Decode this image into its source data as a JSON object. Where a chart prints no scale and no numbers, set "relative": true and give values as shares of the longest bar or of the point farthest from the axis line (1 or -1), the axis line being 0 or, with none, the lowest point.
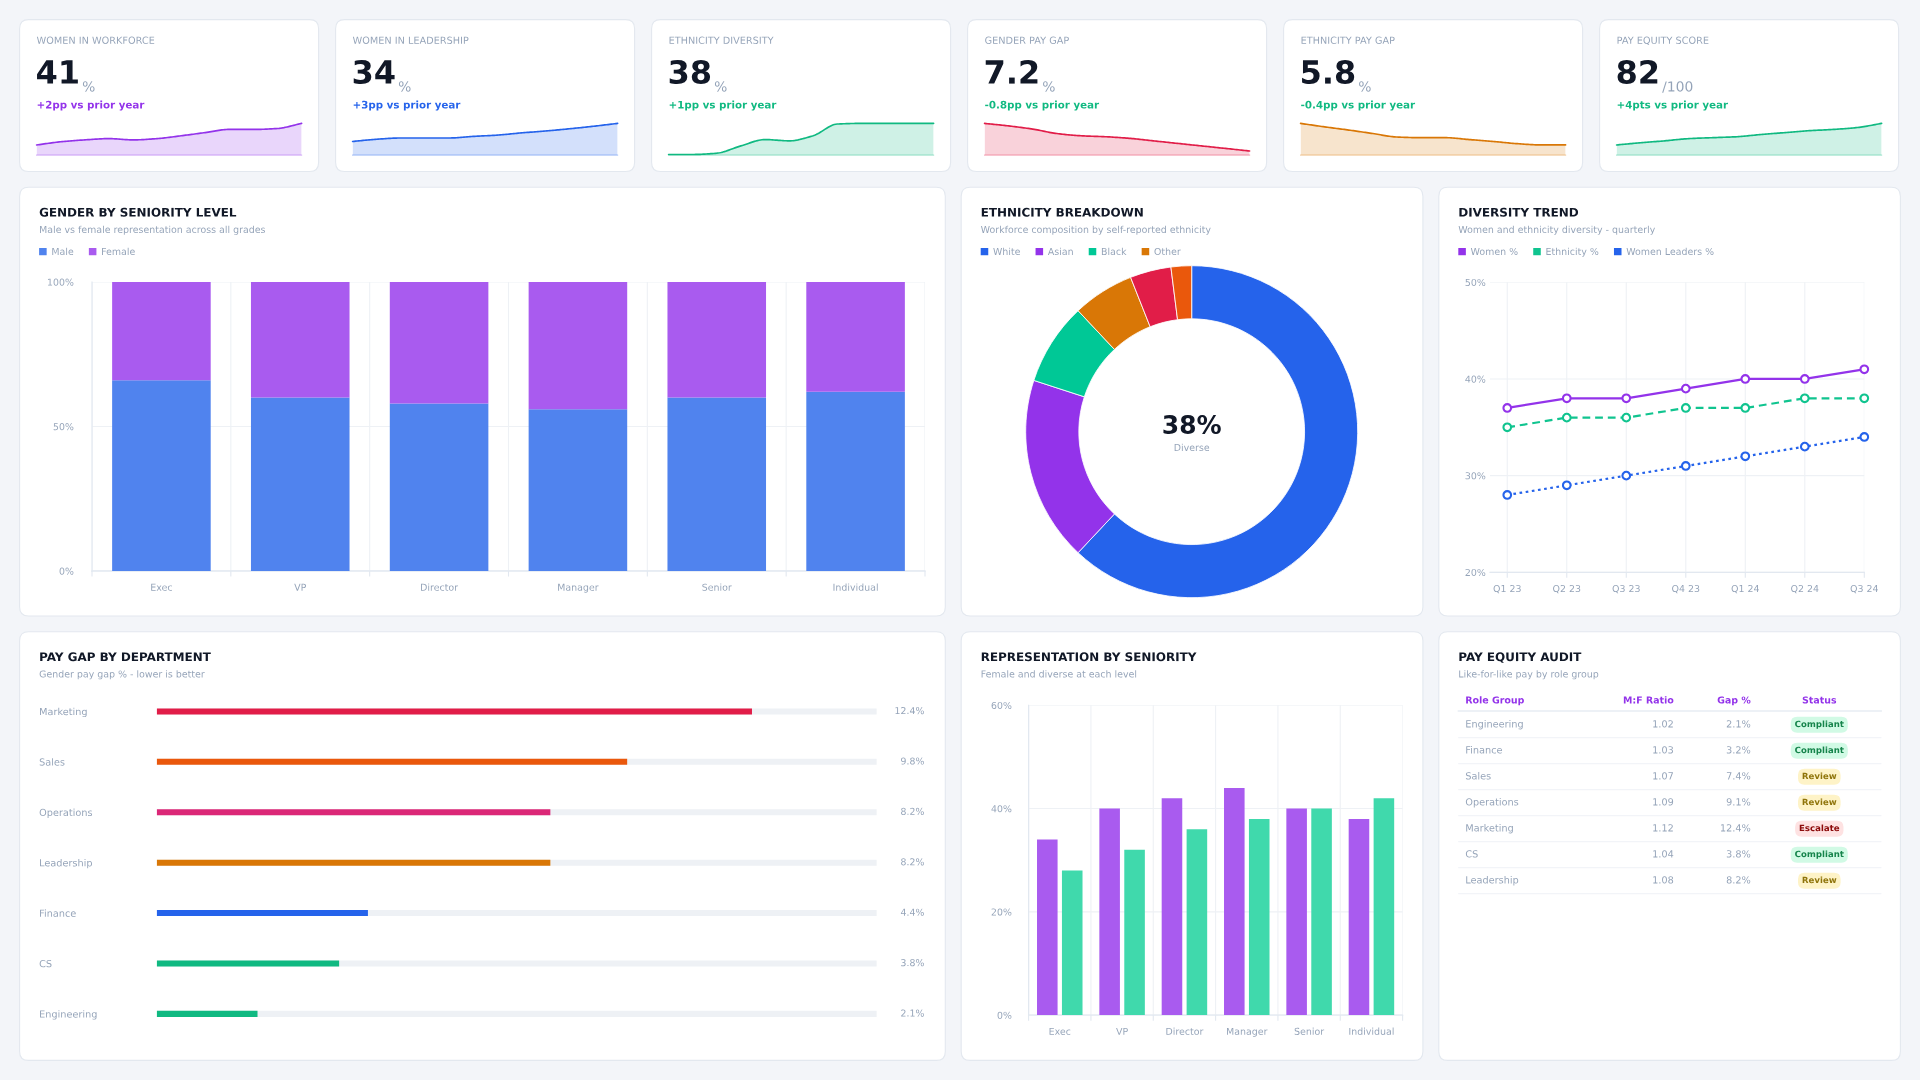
{
  "chart_data": [
    {
      "type": "area",
      "relative": true,
      "title": "WOMEN IN WORKFORCE",
      "categories": [
        null,
        null,
        null,
        null,
        null,
        null,
        null,
        null,
        null,
        null,
        null,
        null
      ],
      "series": [
        {
          "color": "#9333ea",
          "values": [
            0.32,
            0.42,
            0.48,
            0.52,
            0.48,
            0.52,
            0.61,
            0.71,
            0.81,
            0.81,
            0.84,
            1
          ]
        }
      ],
      "annotations": [
        "41",
        "%",
        "+2pp vs prior year"
      ],
      "colors": [
        "#111827",
        "#94a3b8",
        "#9333ea"
      ]
    },
    {
      "type": "area",
      "relative": true,
      "title": "WOMEN IN LEADERSHIP",
      "categories": [
        null,
        null,
        null,
        null,
        null,
        null,
        null,
        null,
        null,
        null,
        null,
        null
      ],
      "series": [
        {
          "color": "#2563eb",
          "values": [
            0.43,
            0.5,
            0.54,
            0.54,
            0.54,
            0.59,
            0.63,
            0.7,
            0.76,
            0.83,
            0.91,
            1
          ]
        }
      ],
      "annotations": [
        "34",
        "%",
        "+3pp vs prior year"
      ],
      "colors": [
        "#111827",
        "#94a3b8",
        "#2563eb"
      ]
    },
    {
      "type": "area",
      "relative": true,
      "title": "ETHNICITY DIVERSITY",
      "categories": [
        null,
        null,
        null,
        null,
        null,
        null,
        null,
        null,
        null,
        null,
        null,
        null
      ],
      "series": [
        {
          "color": "#10b981",
          "values": [
            0.02,
            0.02,
            0.06,
            0.29,
            0.49,
            0.45,
            0.61,
            0.98,
            1,
            1,
            1,
            1
          ]
        }
      ],
      "annotations": [
        "38",
        "%",
        "+1pp vs prior year"
      ],
      "colors": [
        "#111827",
        "#94a3b8",
        "#10b981"
      ]
    },
    {
      "type": "area",
      "relative": true,
      "title": "GENDER PAY GAP",
      "categories": [
        null,
        null,
        null,
        null,
        null,
        null,
        null,
        null,
        null,
        null,
        null,
        null
      ],
      "series": [
        {
          "color": "#e11d48",
          "values": [
            1,
            0.92,
            0.82,
            0.68,
            0.61,
            0.58,
            0.53,
            0.45,
            0.37,
            0.29,
            0.21,
            0.13
          ]
        }
      ],
      "annotations": [
        "7.2",
        "%",
        "-0.8pp vs prior year"
      ],
      "colors": [
        "#111827",
        "#94a3b8",
        "#10b981"
      ]
    },
    {
      "type": "area",
      "relative": true,
      "title": "ETHNICITY PAY GAP",
      "categories": [
        null,
        null,
        null,
        null,
        null,
        null,
        null,
        null,
        null,
        null,
        null,
        null
      ],
      "series": [
        {
          "color": "#d97706",
          "values": [
            1,
            0.89,
            0.79,
            0.68,
            0.57,
            0.55,
            0.55,
            0.49,
            0.43,
            0.36,
            0.32,
            0.32
          ]
        }
      ],
      "annotations": [
        "5.8",
        "%",
        "-0.4pp vs prior year"
      ],
      "colors": [
        "#111827",
        "#94a3b8",
        "#10b981"
      ]
    },
    {
      "type": "area",
      "relative": true,
      "title": "PAY EQUITY SCORE",
      "categories": [
        null,
        null,
        null,
        null,
        null,
        null,
        null,
        null,
        null,
        null,
        null,
        null
      ],
      "series": [
        {
          "color": "#10b981",
          "values": [
            0.32,
            0.39,
            0.45,
            0.52,
            0.55,
            0.58,
            0.65,
            0.71,
            0.77,
            0.81,
            0.87,
            1
          ]
        }
      ],
      "annotations": [
        "82",
        "/100",
        "+4pts vs prior year"
      ],
      "colors": [
        "#111827",
        "#94a3b8",
        "#10b981"
      ]
    },
    {
      "type": "bar",
      "stacked": true,
      "title": "GENDER BY SENIORITY LEVEL",
      "subtitle": "Male vs female representation across all grades",
      "categories": [
        "Exec",
        "VP",
        "Director",
        "Manager",
        "Senior",
        "Individual"
      ],
      "series": [
        {
          "name": "Male",
          "color": "#5083ee",
          "values": [
            66,
            60,
            58,
            56,
            60,
            62
          ]
        },
        {
          "name": "Female",
          "color": "#a95bef",
          "values": [
            34,
            40,
            42,
            44,
            40,
            38
          ]
        }
      ],
      "ylim": [
        0,
        100
      ],
      "yticks": [
        {
          "value": 0,
          "label": "0%"
        },
        {
          "value": 50,
          "label": "50%"
        },
        {
          "value": 100,
          "label": "100%"
        }
      ],
      "grid": true,
      "legend": "top left"
    },
    {
      "type": "donut",
      "title": "ETHNICITY BREAKDOWN",
      "subtitle": "Workforce composition by self-reported ethnicity",
      "categories": [
        "White",
        "Asian",
        "Black",
        "Other",
        null,
        null
      ],
      "values": [
        62,
        18,
        8,
        6,
        4,
        2
      ],
      "colors": [
        "#2563eb",
        "#9333ea",
        "#00c896",
        "#d97706",
        "#e11d48",
        "#ea580c"
      ],
      "annotations": [
        "38%",
        "Diverse"
      ],
      "legend": "top left"
    },
    {
      "type": "line",
      "title": "DIVERSITY TREND",
      "subtitle": "Women and ethnicity diversity - quarterly",
      "categories": [
        "Q1 23",
        "Q2 23",
        "Q3 23",
        "Q4 23",
        "Q1 24",
        "Q2 24",
        "Q3 24"
      ],
      "series": [
        {
          "name": "Women %",
          "color": "#9333ea",
          "line_style": "solid",
          "values": [
            37,
            38,
            38,
            39,
            40,
            40,
            41
          ]
        },
        {
          "name": "Ethnicity %",
          "color": "#10c48f",
          "line_style": "dashed",
          "values": [
            35,
            36,
            36,
            37,
            37,
            38,
            38
          ]
        },
        {
          "name": "Women Leaders %",
          "color": "#2563eb",
          "line_style": "dotted",
          "values": [
            28,
            29,
            30,
            31,
            32,
            33,
            34
          ]
        }
      ],
      "marker": "circle",
      "ylim": [
        20,
        50
      ],
      "yticks": [
        {
          "value": 20,
          "label": "20%"
        },
        {
          "value": 30,
          "label": "30%"
        },
        {
          "value": 40,
          "label": "40%"
        },
        {
          "value": 50,
          "label": "50%"
        }
      ],
      "grid": true,
      "legend": "top left"
    },
    {
      "type": "bar",
      "orientation": "horizontal",
      "title": "PAY GAP BY DEPARTMENT",
      "subtitle": "Gender pay gap % - lower is better",
      "categories": [
        "Marketing",
        "Sales",
        "Operations",
        "Leadership",
        "Finance",
        "CS",
        "Engineering"
      ],
      "values": [
        12.4,
        9.8,
        8.2,
        8.2,
        4.4,
        3.8,
        2.1
      ],
      "colors": [
        "#e11d48",
        "#ea580c",
        "#db2777",
        "#d97706",
        "#2563eb",
        "#10b981",
        "#10b981"
      ],
      "value_labels": [
        "12.4%",
        "9.8%",
        "8.2%",
        "8.2%",
        "4.4%",
        "3.8%",
        "2.1%"
      ],
      "xlim": [
        0,
        15
      ],
      "tick_labels": "y"
    },
    {
      "type": "bar",
      "title": "REPRESENTATION BY SENIORITY",
      "subtitle": "Female and diverse at each level",
      "categories": [
        "Exec",
        "VP",
        "Director",
        "Manager",
        "Senior",
        "Individual"
      ],
      "series": [
        {
          "color": "#a95bef",
          "values": [
            34,
            40,
            42,
            44,
            40,
            38
          ]
        },
        {
          "color": "#40d9ac",
          "values": [
            28,
            32,
            36,
            38,
            40,
            42
          ]
        }
      ],
      "ylim": [
        0,
        60
      ],
      "yticks": [
        {
          "value": 0,
          "label": "0%"
        },
        {
          "value": 20,
          "label": "20%"
        },
        {
          "value": 40,
          "label": "40%"
        },
        {
          "value": 60,
          "label": "60%"
        }
      ],
      "grid": true
    },
    {
      "type": "other",
      "title": "PAY EQUITY AUDIT",
      "subtitle": "Like-for-like pay by role group",
      "categories": [
        "Role Group",
        "M:F Ratio",
        "Gap %",
        "Status"
      ],
      "annotations": [
        "Engineering",
        "1.02",
        "2.1%",
        "Compliant",
        "Finance",
        "1.03",
        "3.2%",
        "Compliant",
        "Sales",
        "1.07",
        "7.4%",
        "Review",
        "Operations",
        "1.09",
        "9.1%",
        "Review",
        "Marketing",
        "1.12",
        "12.4%",
        "Escalate",
        "CS",
        "1.04",
        "3.8%",
        "Compliant",
        "Leadership",
        "1.08",
        "8.2%",
        "Review"
      ],
      "colors": [
        null,
        null,
        null,
        "#d1fae5",
        null,
        null,
        null,
        "#d1fae5",
        null,
        null,
        null,
        "#fef3c7",
        null,
        null,
        null,
        "#fef3c7",
        null,
        null,
        null,
        "#fee2e2",
        null,
        null,
        null,
        "#d1fae5",
        null,
        null,
        null,
        "#fef3c7"
      ]
    }
  ]
}
